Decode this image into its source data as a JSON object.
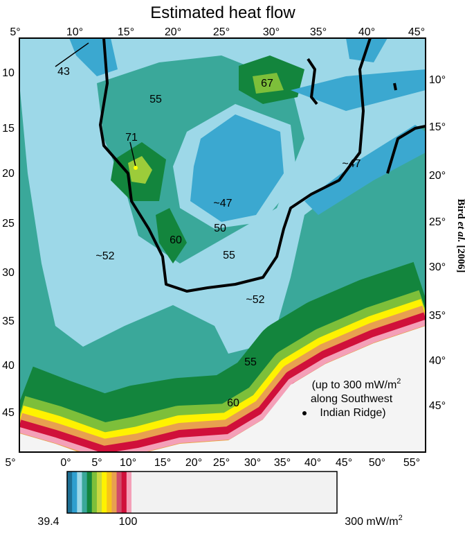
{
  "title": "Estimated heat flow",
  "top_labels": [
    "5°",
    "10°",
    "15°",
    "20°",
    "25°",
    "30°",
    "35°",
    "40°",
    "45°"
  ],
  "bottom_labels": [
    "5°",
    "0°",
    "5°",
    "10°",
    "15°",
    "20°",
    "25°",
    "30°",
    "35°",
    "40°",
    "45°",
    "50°",
    "55°"
  ],
  "left_labels": [
    "10",
    "15",
    "20",
    "25",
    "30",
    "35",
    "40",
    "45"
  ],
  "right_labels": [
    "10°",
    "15°",
    "20°",
    "25°",
    "30°",
    "35°",
    "40°",
    "45°"
  ],
  "credit": {
    "author": "Bird ",
    "etal": "et al.",
    "year": " [2006]"
  },
  "contour_labels": [
    "43",
    "55",
    "67",
    "71",
    "~47",
    "~47",
    "50",
    "60",
    "~52",
    "55",
    "~52",
    "55",
    "60"
  ],
  "annotation": {
    "line1": "(up to 300 mW/m",
    "sup": "2",
    "line2": "along Southwest",
    "line3": "Indian Ridge)"
  },
  "colorbar": {
    "min": "39.4",
    "mid": "100",
    "max": "300 mW/m",
    "sup": "2"
  }
}
